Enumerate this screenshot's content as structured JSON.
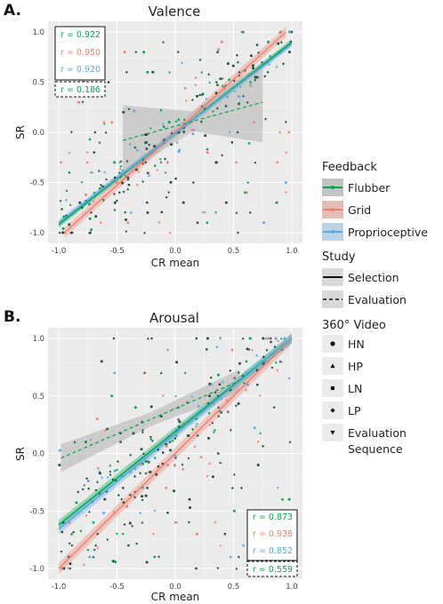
{
  "colors": {
    "flubber": "#00a651",
    "grid": "#f08070",
    "proprioceptive": "#5aa9e6",
    "panel_bg": "#ebebeb",
    "ribbon": "#b3b3b3"
  },
  "legend": {
    "feedback_title": "Feedback",
    "feedback_items": [
      "Flubber",
      "Grid",
      "Proprioceptive"
    ],
    "study_title": "Study",
    "study_items": [
      "Selection",
      "Evaluation"
    ],
    "video_title": "360° Video",
    "video_items": [
      {
        "label": "HN",
        "shape": "circle"
      },
      {
        "label": "HP",
        "shape": "triangle-up"
      },
      {
        "label": "LN",
        "shape": "square"
      },
      {
        "label": "LP",
        "shape": "diamond"
      },
      {
        "label": "Evaluation\nSequence",
        "shape": "triangle-down"
      }
    ]
  },
  "chart_data": [
    {
      "type": "scatter",
      "panel_label": "A.",
      "title": "Valence",
      "xlabel": "CR mean",
      "ylabel": "SR",
      "xlim": [
        -1.0,
        1.0
      ],
      "ylim": [
        -1.0,
        1.0
      ],
      "xticks": [
        "-1.0",
        "-0.5",
        "0.0",
        "0.5",
        "1.0"
      ],
      "yticks": [
        "1.0",
        "0.5",
        "0.0",
        "-0.5",
        "-1.0"
      ],
      "grid": true,
      "r_box_position": "top-left",
      "r_values": [
        {
          "series": "Flubber",
          "study": "Selection",
          "r": "r = 0.922"
        },
        {
          "series": "Grid",
          "study": "Selection",
          "r": "r = 0.950"
        },
        {
          "series": "Proprioceptive",
          "study": "Selection",
          "r": "r = 0.920"
        },
        {
          "series": "Flubber",
          "study": "Evaluation",
          "r": "r = 0.186"
        }
      ],
      "fit_lines": [
        {
          "series": "Flubber",
          "study": "Selection",
          "x": [
            -1.0,
            1.0
          ],
          "y": [
            -0.92,
            0.9
          ],
          "ribbon": 0.03
        },
        {
          "series": "Grid",
          "study": "Selection",
          "x": [
            -0.95,
            0.95
          ],
          "y": [
            -1.0,
            1.0
          ],
          "ribbon": 0.05
        },
        {
          "series": "Proprioceptive",
          "study": "Selection",
          "x": [
            -1.0,
            1.0
          ],
          "y": [
            -0.9,
            0.88
          ],
          "ribbon": 0.03
        },
        {
          "series": "Flubber",
          "study": "Evaluation",
          "x": [
            -0.45,
            0.75
          ],
          "y": [
            -0.08,
            0.3
          ],
          "ribbon": [
            0.35,
            0.1,
            0.4
          ]
        }
      ]
    },
    {
      "type": "scatter",
      "panel_label": "B.",
      "title": "Arousal",
      "xlabel": "CR mean",
      "ylabel": "SR",
      "xlim": [
        -1.0,
        1.0
      ],
      "ylim": [
        -1.0,
        1.0
      ],
      "xticks": [
        "-1.0",
        "-0.5",
        "0.0",
        "0.5",
        "1.0"
      ],
      "yticks": [
        "1.0",
        "0.5",
        "0.0",
        "-0.5",
        "-1.0"
      ],
      "grid": true,
      "r_box_position": "bottom-right",
      "r_values": [
        {
          "series": "Flubber",
          "study": "Selection",
          "r": "r = 0.873"
        },
        {
          "series": "Grid",
          "study": "Selection",
          "r": "r = 0.938"
        },
        {
          "series": "Proprioceptive",
          "study": "Selection",
          "r": "r = 0.852"
        },
        {
          "series": "Flubber",
          "study": "Evaluation",
          "r": "r = 0.559"
        }
      ],
      "fit_lines": [
        {
          "series": "Flubber",
          "study": "Selection",
          "x": [
            -1.0,
            1.0
          ],
          "y": [
            -0.62,
            1.0
          ],
          "ribbon": 0.04
        },
        {
          "series": "Grid",
          "study": "Selection",
          "x": [
            -1.0,
            1.0
          ],
          "y": [
            -1.0,
            1.0
          ],
          "ribbon": 0.05
        },
        {
          "series": "Proprioceptive",
          "study": "Selection",
          "x": [
            -1.0,
            1.0
          ],
          "y": [
            -0.66,
            1.0
          ],
          "ribbon": 0.04
        },
        {
          "series": "Flubber",
          "study": "Evaluation",
          "x": [
            -0.98,
            0.55
          ],
          "y": [
            -0.04,
            0.63
          ],
          "ribbon": [
            0.12,
            0.06,
            0.1
          ]
        }
      ]
    }
  ]
}
